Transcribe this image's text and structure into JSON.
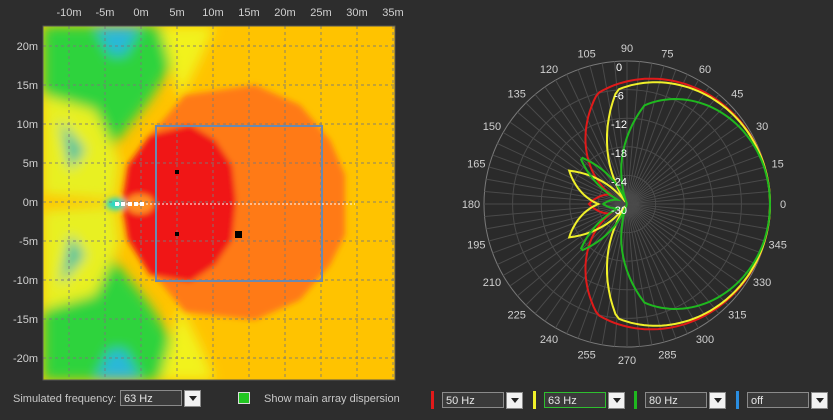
{
  "map": {
    "x_ticks": [
      "-10m",
      "-5m",
      "0m",
      "5m",
      "10m",
      "15m",
      "20m",
      "25m",
      "30m",
      "35m"
    ],
    "y_ticks": [
      "20m",
      "15m",
      "10m",
      "5m",
      "0m",
      "-5m",
      "-10m",
      "-15m",
      "-20m"
    ]
  },
  "polar": {
    "angle_labels": [
      "0",
      "15",
      "30",
      "45",
      "60",
      "75",
      "90",
      "105",
      "120",
      "135",
      "150",
      "165",
      "180",
      "195",
      "210",
      "225",
      "240",
      "255",
      "270",
      "285",
      "300",
      "315",
      "330",
      "345"
    ],
    "db_labels": [
      "0",
      "-6",
      "-12",
      "-18",
      "-24",
      "-30"
    ],
    "colors": {
      "red": "#e01a1a",
      "yellow": "#f0f02a",
      "green": "#1fb81f",
      "blue": "#2a8de0"
    }
  },
  "footer": {
    "simulated_frequency_label": "Simulated frequency:",
    "simulated_frequency_value": "63 Hz",
    "show_dispersion_label": "Show  main array dispersion",
    "show_dispersion_checked": true
  },
  "polar_controls": [
    {
      "value": "50 Hz",
      "color": "#e01a1a"
    },
    {
      "value": "63 Hz",
      "color": "#f0f02a"
    },
    {
      "value": "80 Hz",
      "color": "#1fb81f"
    },
    {
      "value": "off",
      "color": "#2a8de0"
    }
  ]
}
